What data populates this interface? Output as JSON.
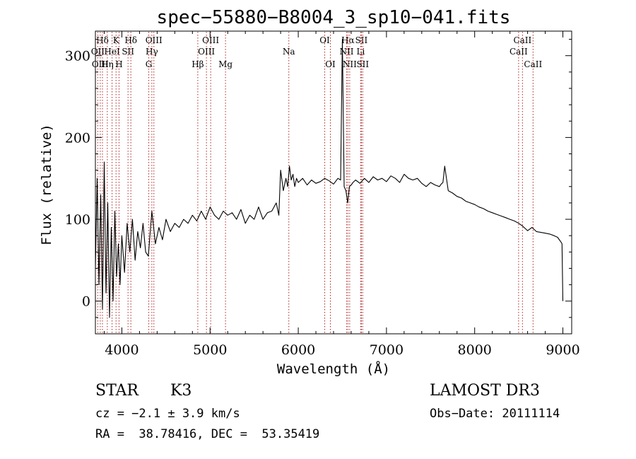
{
  "chart_data": {
    "type": "line",
    "title": "spec−55880−B8004_3_sp10−041.fits",
    "xlabel": "Wavelength (Å)",
    "ylabel": "Flux (relative)",
    "xlim": [
      3700,
      9100
    ],
    "ylim": [
      -40,
      330
    ],
    "xticks": [
      4000,
      5000,
      6000,
      7000,
      8000,
      9000
    ],
    "yticks": [
      0,
      100,
      200,
      300
    ],
    "series": [
      {
        "name": "flux",
        "x": [
          3700,
          3720,
          3740,
          3760,
          3780,
          3800,
          3820,
          3840,
          3860,
          3880,
          3900,
          3920,
          3940,
          3960,
          3980,
          4000,
          4030,
          4060,
          4090,
          4120,
          4150,
          4180,
          4210,
          4240,
          4270,
          4300,
          4340,
          4380,
          4420,
          4460,
          4500,
          4550,
          4600,
          4650,
          4700,
          4750,
          4800,
          4850,
          4900,
          4950,
          5000,
          5050,
          5100,
          5150,
          5200,
          5250,
          5300,
          5350,
          5400,
          5450,
          5500,
          5550,
          5600,
          5650,
          5700,
          5750,
          5780,
          5800,
          5830,
          5860,
          5880,
          5900,
          5920,
          5940,
          5960,
          5980,
          6000,
          6050,
          6100,
          6150,
          6200,
          6250,
          6300,
          6350,
          6400,
          6450,
          6480,
          6500,
          6520,
          6540,
          6560,
          6580,
          6600,
          6620,
          6650,
          6700,
          6750,
          6800,
          6850,
          6900,
          6950,
          7000,
          7050,
          7100,
          7150,
          7200,
          7250,
          7300,
          7350,
          7400,
          7450,
          7500,
          7550,
          7600,
          7620,
          7640,
          7660,
          7700,
          7750,
          7800,
          7850,
          7900,
          7950,
          8000,
          8050,
          8100,
          8150,
          8200,
          8250,
          8300,
          8350,
          8400,
          8450,
          8500,
          8540,
          8580,
          8600,
          8650,
          8700,
          8750,
          8800,
          8850,
          8900,
          8940,
          8960,
          8980,
          8990,
          9000
        ],
        "y": [
          40,
          150,
          20,
          130,
          -10,
          170,
          10,
          120,
          -20,
          90,
          0,
          110,
          30,
          70,
          20,
          80,
          35,
          95,
          60,
          100,
          50,
          85,
          65,
          95,
          60,
          55,
          110,
          70,
          90,
          75,
          100,
          85,
          95,
          90,
          100,
          95,
          105,
          98,
          110,
          100,
          115,
          105,
          100,
          110,
          105,
          108,
          100,
          112,
          95,
          105,
          100,
          115,
          100,
          108,
          110,
          120,
          105,
          160,
          135,
          150,
          140,
          165,
          148,
          155,
          140,
          150,
          145,
          150,
          142,
          148,
          144,
          146,
          150,
          147,
          143,
          150,
          148,
          320,
          140,
          135,
          120,
          140,
          142,
          145,
          148,
          144,
          150,
          145,
          152,
          148,
          150,
          146,
          153,
          150,
          145,
          155,
          150,
          148,
          150,
          144,
          140,
          145,
          142,
          140,
          143,
          145,
          165,
          135,
          132,
          128,
          126,
          122,
          120,
          118,
          115,
          113,
          110,
          108,
          106,
          104,
          102,
          100,
          98,
          95,
          92,
          88,
          86,
          90,
          85,
          84,
          83,
          82,
          80,
          78,
          75,
          72,
          70,
          0
        ]
      }
    ],
    "line_markers": [
      {
        "label": "Hδ",
        "x": 3780,
        "row": 1
      },
      {
        "label": "OII",
        "x": 3727,
        "row": 2
      },
      {
        "label": "OIII",
        "x": 3755,
        "row": 3
      },
      {
        "label": "K",
        "x": 3934,
        "row": 1
      },
      {
        "label": "HeI",
        "x": 3889,
        "row": 2
      },
      {
        "label": "Hη",
        "x": 3835,
        "row": 3
      },
      {
        "label": "SII",
        "x": 4070,
        "row": 2
      },
      {
        "label": "H",
        "x": 3968,
        "row": 3
      },
      {
        "label": "Hδ",
        "x": 4102,
        "row": 1
      },
      {
        "label": "OIII",
        "x": 4363,
        "row": 1
      },
      {
        "label": "Hγ",
        "x": 4340,
        "row": 2
      },
      {
        "label": "G",
        "x": 4305,
        "row": 3
      },
      {
        "label": "OIII",
        "x": 5007,
        "row": 1
      },
      {
        "label": "OIII",
        "x": 4959,
        "row": 2
      },
      {
        "label": "Hβ",
        "x": 4861,
        "row": 3
      },
      {
        "label": "Mg",
        "x": 5175,
        "row": 3
      },
      {
        "label": "Na",
        "x": 5893,
        "row": 2
      },
      {
        "label": "OI",
        "x": 6300,
        "row": 1
      },
      {
        "label": "OI",
        "x": 6364,
        "row": 3
      },
      {
        "label": "Hα",
        "x": 6563,
        "row": 1
      },
      {
        "label": "SII",
        "x": 6716,
        "row": 1
      },
      {
        "label": "NII",
        "x": 6548,
        "row": 2
      },
      {
        "label": "Li",
        "x": 6708,
        "row": 2
      },
      {
        "label": "NII",
        "x": 6583,
        "row": 3
      },
      {
        "label": "SII",
        "x": 6731,
        "row": 3
      },
      {
        "label": "CaII",
        "x": 8542,
        "row": 1
      },
      {
        "label": "CaII",
        "x": 8498,
        "row": 2
      },
      {
        "label": "CaII",
        "x": 8662,
        "row": 3
      }
    ]
  },
  "info": {
    "class": "STAR",
    "subclass": "K3",
    "survey": "LAMOST DR3",
    "cz": "cz = −2.1 ± 3.9 km/s",
    "obs_date": "Obs−Date: 20111114",
    "coords": "RA =  38.78416, DEC =  53.35419"
  }
}
